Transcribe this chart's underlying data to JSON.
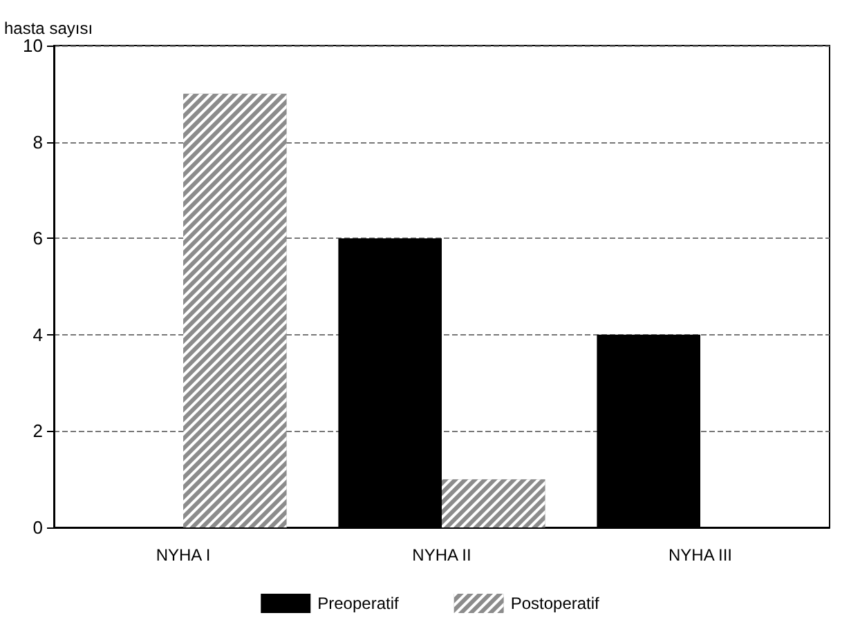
{
  "chart_data": {
    "type": "bar",
    "ylabel": "hasta sayısı",
    "categories": [
      "NYHA I",
      "NYHA II",
      "NYHA III"
    ],
    "series": [
      {
        "name": "Preoperatif",
        "color": "#000000",
        "values": [
          0,
          6,
          4
        ]
      },
      {
        "name": "Postoperatif",
        "color": "#8c8c8c",
        "values": [
          9,
          1,
          0
        ]
      }
    ],
    "ylim": [
      0,
      10
    ],
    "yticks": [
      0,
      2,
      4,
      6,
      8,
      10
    ],
    "grid": "y",
    "legend": "bottom"
  }
}
